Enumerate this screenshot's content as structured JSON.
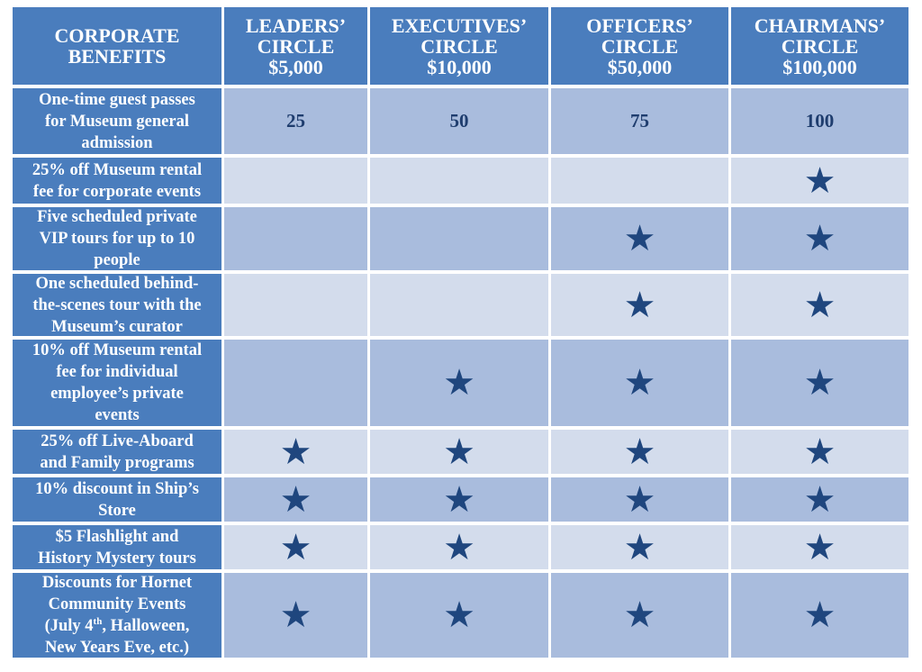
{
  "headers": [
    [
      "CORPORATE",
      "BENEFITS"
    ],
    [
      "LEADERS’",
      "CIRCLE",
      "$5,000"
    ],
    [
      "EXECUTIVES’",
      "CIRCLE",
      "$10,000"
    ],
    [
      "OFFICERS’",
      "CIRCLE",
      "$50,000"
    ],
    [
      "CHAIRMANS’",
      "CIRCLE",
      "$100,000"
    ]
  ],
  "star_icon": "star-icon",
  "colors": {
    "header": "#4a7dbd",
    "row_dark": "#a9bcdd",
    "row_light": "#d3dcec",
    "star": "#1f467e"
  },
  "rows": [
    {
      "label": [
        "One-time guest passes",
        "for Museum general",
        "admission"
      ],
      "cells": [
        "25",
        "50",
        "75",
        "100"
      ]
    },
    {
      "label": [
        "25% off Museum rental",
        "fee for corporate events"
      ],
      "cells": [
        "",
        "",
        "",
        "star"
      ]
    },
    {
      "label": [
        "Five scheduled private",
        "VIP tours for up to 10",
        "people"
      ],
      "cells": [
        "",
        "",
        "star",
        "star"
      ]
    },
    {
      "label": [
        "One scheduled behind-",
        "the-scenes tour with the",
        "Museum’s curator"
      ],
      "cells": [
        "",
        "",
        "star",
        "star"
      ]
    },
    {
      "label": [
        "10% off Museum rental",
        "fee for individual",
        "employee’s private",
        "events"
      ],
      "cells": [
        "",
        "star",
        "star",
        "star"
      ]
    },
    {
      "label": [
        "25% off Live-Aboard",
        "and Family programs"
      ],
      "cells": [
        "star",
        "star",
        "star",
        "star"
      ]
    },
    {
      "label": [
        "10% discount in Ship’s",
        "Store"
      ],
      "cells": [
        "star",
        "star",
        "star",
        "star"
      ]
    },
    {
      "label": [
        "$5 Flashlight and",
        "History Mystery tours"
      ],
      "cells": [
        "star",
        "star",
        "star",
        "star"
      ]
    },
    {
      "label": [
        "Discounts for Hornet",
        "Community Events",
        "(July 4|th|, Halloween,",
        "New Years Eve, etc.)"
      ],
      "cells": [
        "star",
        "star",
        "star",
        "star"
      ]
    }
  ]
}
